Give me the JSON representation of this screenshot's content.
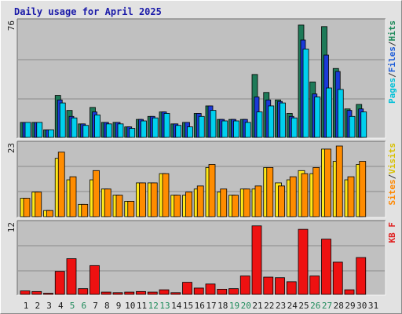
{
  "title": "Daily usage for April 2025",
  "chart_data": [
    {
      "type": "bar",
      "panel": "top",
      "ymax_label": "76",
      "ylim": [
        0,
        76
      ],
      "legend_right": [
        {
          "text": "Pages",
          "color": "#00c0d8"
        },
        {
          "text": "/",
          "color": "#333333"
        },
        {
          "text": "Files",
          "color": "#1a5ad8"
        },
        {
          "text": "/",
          "color": "#333333"
        },
        {
          "text": "Hits",
          "color": "#1e8a5a"
        }
      ],
      "series": [
        {
          "name": "Hits",
          "color": "#1e7a58",
          "values": [
            10,
            10,
            5,
            28,
            18,
            9,
            20,
            10,
            10,
            7,
            12,
            14,
            17,
            9,
            10,
            16,
            21,
            12,
            12,
            12,
            42,
            30,
            25,
            16,
            75,
            37,
            74,
            46,
            19,
            22
          ]
        },
        {
          "name": "Files",
          "color": "#1a3ad8",
          "values": [
            10,
            10,
            5,
            25,
            14,
            9,
            17,
            10,
            10,
            7,
            12,
            14,
            17,
            9,
            10,
            16,
            21,
            12,
            12,
            12,
            27,
            25,
            24,
            14,
            65,
            29,
            55,
            44,
            18,
            19
          ]
        },
        {
          "name": "Pages",
          "color": "#00d0ee",
          "values": [
            10,
            10,
            5,
            23,
            13,
            8,
            15,
            9,
            9,
            6,
            11,
            13,
            16,
            8,
            7,
            14,
            18,
            11,
            11,
            10,
            17,
            21,
            23,
            13,
            59,
            27,
            33,
            32,
            14,
            17
          ]
        }
      ]
    },
    {
      "type": "bar",
      "panel": "middle",
      "ymax_label": "23",
      "ylim": [
        0,
        23
      ],
      "legend_right": [
        {
          "text": "Sites",
          "color": "#ff8800"
        },
        {
          "text": "/",
          "color": "#333333"
        },
        {
          "text": "Visits",
          "color": "#d8c000"
        }
      ],
      "series": [
        {
          "name": "Visits",
          "color": "#ffe818",
          "values": [
            6,
            8,
            2,
            19,
            12,
            4,
            12,
            9,
            7,
            5,
            11,
            11,
            14,
            7,
            7,
            9,
            16,
            8,
            7,
            9,
            9,
            16,
            11,
            12,
            15,
            14,
            22,
            18,
            12,
            17
          ]
        },
        {
          "name": "Sites",
          "color": "#ff8c00",
          "values": [
            6,
            8,
            2,
            21,
            13,
            4,
            15,
            9,
            7,
            5,
            11,
            11,
            14,
            7,
            8,
            10,
            17,
            9,
            7,
            9,
            10,
            16,
            10,
            13,
            14,
            16,
            22,
            23,
            13,
            18
          ]
        }
      ]
    },
    {
      "type": "bar",
      "panel": "bottom",
      "ymax_label": "12",
      "ylim": [
        0,
        12
      ],
      "legend_right": [
        {
          "text": "KB F",
          "color": "#e02020"
        }
      ],
      "series": [
        {
          "name": "KB F",
          "color": "#ee1111",
          "values": [
            0.6,
            0.5,
            0.2,
            4.0,
            6.2,
            1.0,
            5.0,
            0.4,
            0.3,
            0.4,
            0.5,
            0.4,
            0.8,
            0.3,
            2.1,
            1.1,
            1.8,
            0.9,
            1.0,
            3.2,
            11.9,
            3.0,
            2.9,
            2.2,
            11.3,
            3.2,
            9.6,
            5.6,
            0.8,
            6.4
          ]
        }
      ]
    }
  ],
  "x_labels": [
    {
      "day": "1",
      "weekend": false
    },
    {
      "day": "2",
      "weekend": false
    },
    {
      "day": "3",
      "weekend": false
    },
    {
      "day": "4",
      "weekend": false
    },
    {
      "day": "5",
      "weekend": true
    },
    {
      "day": "6",
      "weekend": true
    },
    {
      "day": "7",
      "weekend": false
    },
    {
      "day": "8",
      "weekend": false
    },
    {
      "day": "9",
      "weekend": false
    },
    {
      "day": "10",
      "weekend": false
    },
    {
      "day": "11",
      "weekend": false
    },
    {
      "day": "12",
      "weekend": true
    },
    {
      "day": "13",
      "weekend": true
    },
    {
      "day": "14",
      "weekend": false
    },
    {
      "day": "15",
      "weekend": false
    },
    {
      "day": "16",
      "weekend": false
    },
    {
      "day": "17",
      "weekend": false
    },
    {
      "day": "18",
      "weekend": false
    },
    {
      "day": "19",
      "weekend": true
    },
    {
      "day": "20",
      "weekend": true
    },
    {
      "day": "21",
      "weekend": false
    },
    {
      "day": "22",
      "weekend": false
    },
    {
      "day": "23",
      "weekend": false
    },
    {
      "day": "24",
      "weekend": false
    },
    {
      "day": "25",
      "weekend": false
    },
    {
      "day": "26",
      "weekend": true
    },
    {
      "day": "27",
      "weekend": true
    },
    {
      "day": "28",
      "weekend": false
    },
    {
      "day": "29",
      "weekend": false
    },
    {
      "day": "30",
      "weekend": false
    },
    {
      "day": "31",
      "weekend": false
    }
  ],
  "colors": {
    "weekday_label": "#1a1a1a",
    "weekend_label": "#1e8a5a",
    "panel_bg": "#c0c0c0",
    "gridline": "#8a8a8a"
  }
}
